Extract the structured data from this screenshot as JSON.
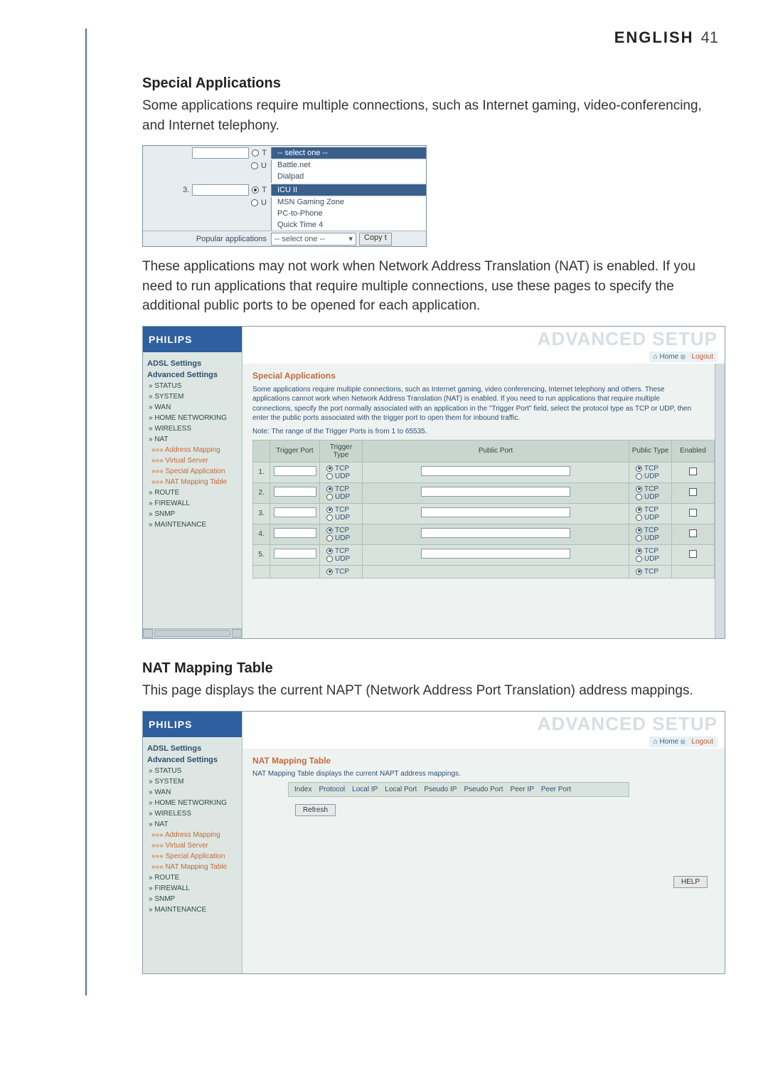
{
  "header": {
    "language": "ENGLISH",
    "page_number": "41"
  },
  "sections": {
    "special_apps_title": "Special Applications",
    "special_apps_intro": "Some applications require multiple connections, such as Internet gaming, video-conferencing, and Internet telephony.",
    "special_apps_after": "These applications may not work when Network Address Translation (NAT) is enabled. If you need to run applications that require multiple connections, use these pages to specify the additional public ports to be opened for each application.",
    "nat_title": "NAT Mapping Table",
    "nat_body": "This page displays the current NAPT (Network Address Port Translation) address mappings."
  },
  "mini_shot": {
    "select_one": "-- select one --",
    "options": {
      "battle": "Battle.net",
      "dialpad": "Dialpad",
      "icu": "ICU II",
      "msn": "MSN Gaming Zone",
      "pc": "PC-to-Phone",
      "qt": "Quick Time 4"
    },
    "row_index": "3.",
    "popular_label": "Popular applications",
    "select_placeholder": "-- select one --",
    "copy_label": "Copy t"
  },
  "advanced": {
    "brand": "PHILIPS",
    "ghost_title": "ADVANCED SETUP",
    "home_label": "Home",
    "logout_label": "Logout"
  },
  "sidebar": {
    "adsl": "ADSL Settings",
    "advanced": "Advanced Settings",
    "items": {
      "status": "» STATUS",
      "system": "» SYSTEM",
      "wan": "» WAN",
      "homenet": "» HOME NETWORKING",
      "wireless": "» WIRELESS",
      "nat": "» NAT",
      "addr_map": "»»» Address Mapping",
      "vserver": "»»» Virtual Server",
      "special": "»»» Special Application",
      "natmap": "»»» NAT Mapping Table",
      "route": "» ROUTE",
      "firewall": "» FIREWALL",
      "snmp": "» SNMP",
      "maint": "» MAINTENANCE"
    }
  },
  "special_panel": {
    "title": "Special Applications",
    "help": "Some applications require multiple connections, such as Internet gaming, video conferencing, Internet telephony and others. These applications cannot work when Network Address Translation (NAT) is enabled. If you need to run applications that require multiple connections, specify the port normally associated with an application in the \"Trigger Port\" field, select the protocol type as TCP or UDP, then enter the public ports associated with the trigger port to open them for inbound traffic.",
    "note": "Note: The range of the Trigger Ports is from 1 to 65535.",
    "cols": {
      "num": "",
      "trigger_port": "Trigger Port",
      "trigger_type": "Trigger Type",
      "public_port": "Public Port",
      "public_type": "Public Type",
      "enabled": "Enabled"
    },
    "proto": {
      "tcp": "TCP",
      "udp": "UDP"
    },
    "row_nums": [
      "1.",
      "2.",
      "3.",
      "4.",
      "5."
    ]
  },
  "nat_panel": {
    "title": "NAT Mapping Table",
    "subtitle": "NAT Mapping Table displays the current NAPT address mappings.",
    "cols": {
      "index": "Index",
      "protocol": "Protocol",
      "local_ip": "Local IP",
      "local_port": "Local Port",
      "pseudo_ip": "Pseudo IP",
      "pseudo_port": "Pseudo Port",
      "peer_ip": "Peer IP",
      "peer_port": "Peer Port"
    },
    "refresh": "Refresh",
    "help": "HELP"
  },
  "colors": {
    "accent_blue": "#2e5f9e",
    "link_orange": "#c36a3a",
    "panel_bg": "#eef3f2",
    "side_bg": "#dde6e2"
  }
}
